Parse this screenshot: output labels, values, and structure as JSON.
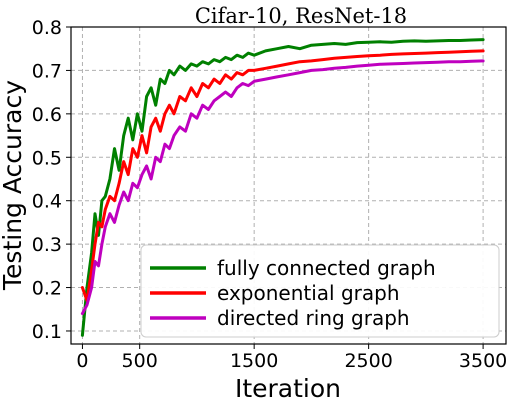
{
  "chart_data": {
    "type": "line",
    "title": "Cifar-10, ResNet-18",
    "xlabel": "Iteration",
    "ylabel": "Testing Accuracy",
    "xlim": [
      -100,
      3700
    ],
    "ylim": [
      0.07,
      0.8
    ],
    "xticks": [
      0,
      500,
      1500,
      2500,
      3500
    ],
    "xtick_labels": [
      "0",
      "500",
      "1500",
      "2500",
      "3500"
    ],
    "yticks": [
      0.1,
      0.2,
      0.3,
      0.4,
      0.5,
      0.6,
      0.7,
      0.8
    ],
    "ytick_labels": [
      "0.1",
      "0.2",
      "0.3",
      "0.4",
      "0.5",
      "0.6",
      "0.7",
      "0.8"
    ],
    "grid": true,
    "legend_position": "lower-right",
    "series": [
      {
        "name": "fully connected graph",
        "color": "#008000",
        "x": [
          0,
          40,
          80,
          110,
          140,
          170,
          200,
          240,
          280,
          320,
          360,
          400,
          440,
          480,
          520,
          560,
          600,
          640,
          680,
          720,
          760,
          800,
          850,
          900,
          950,
          1000,
          1050,
          1100,
          1150,
          1200,
          1250,
          1300,
          1350,
          1400,
          1450,
          1500,
          1600,
          1700,
          1800,
          1900,
          2000,
          2100,
          2200,
          2300,
          2400,
          2500,
          2600,
          2700,
          2800,
          2900,
          3000,
          3100,
          3200,
          3300,
          3400,
          3500
        ],
        "y": [
          0.09,
          0.2,
          0.28,
          0.37,
          0.32,
          0.4,
          0.41,
          0.45,
          0.52,
          0.47,
          0.55,
          0.59,
          0.54,
          0.6,
          0.56,
          0.64,
          0.66,
          0.62,
          0.68,
          0.67,
          0.7,
          0.69,
          0.71,
          0.7,
          0.715,
          0.71,
          0.72,
          0.715,
          0.725,
          0.72,
          0.73,
          0.725,
          0.735,
          0.73,
          0.74,
          0.735,
          0.745,
          0.75,
          0.755,
          0.75,
          0.758,
          0.76,
          0.762,
          0.76,
          0.764,
          0.765,
          0.766,
          0.765,
          0.767,
          0.768,
          0.767,
          0.768,
          0.769,
          0.769,
          0.77,
          0.771
        ]
      },
      {
        "name": "exponential graph",
        "color": "#ff0000",
        "x": [
          0,
          40,
          80,
          110,
          140,
          170,
          200,
          240,
          280,
          320,
          360,
          400,
          440,
          480,
          520,
          560,
          600,
          640,
          680,
          720,
          760,
          800,
          850,
          900,
          950,
          1000,
          1050,
          1100,
          1150,
          1200,
          1250,
          1300,
          1350,
          1400,
          1450,
          1500,
          1600,
          1700,
          1800,
          1900,
          2000,
          2100,
          2200,
          2300,
          2400,
          2500,
          2600,
          2700,
          2800,
          2900,
          3000,
          3100,
          3200,
          3300,
          3400,
          3500
        ],
        "y": [
          0.2,
          0.17,
          0.24,
          0.3,
          0.35,
          0.34,
          0.38,
          0.41,
          0.4,
          0.44,
          0.49,
          0.46,
          0.52,
          0.5,
          0.55,
          0.51,
          0.57,
          0.59,
          0.56,
          0.6,
          0.62,
          0.6,
          0.64,
          0.63,
          0.66,
          0.64,
          0.67,
          0.66,
          0.68,
          0.67,
          0.69,
          0.68,
          0.695,
          0.69,
          0.7,
          0.7,
          0.705,
          0.71,
          0.715,
          0.72,
          0.722,
          0.725,
          0.728,
          0.73,
          0.732,
          0.734,
          0.735,
          0.737,
          0.738,
          0.739,
          0.74,
          0.741,
          0.742,
          0.743,
          0.744,
          0.745
        ]
      },
      {
        "name": "directed ring graph",
        "color": "#bf00bf",
        "x": [
          0,
          40,
          80,
          110,
          140,
          170,
          200,
          240,
          280,
          320,
          360,
          400,
          440,
          480,
          520,
          560,
          600,
          640,
          680,
          720,
          760,
          800,
          850,
          900,
          950,
          1000,
          1050,
          1100,
          1150,
          1200,
          1250,
          1300,
          1350,
          1400,
          1450,
          1500,
          1600,
          1700,
          1800,
          1900,
          2000,
          2100,
          2200,
          2300,
          2400,
          2500,
          2600,
          2700,
          2800,
          2900,
          3000,
          3100,
          3200,
          3300,
          3400,
          3500
        ],
        "y": [
          0.14,
          0.16,
          0.2,
          0.26,
          0.25,
          0.3,
          0.34,
          0.37,
          0.35,
          0.39,
          0.42,
          0.4,
          0.44,
          0.43,
          0.46,
          0.48,
          0.45,
          0.5,
          0.49,
          0.53,
          0.52,
          0.55,
          0.57,
          0.56,
          0.6,
          0.59,
          0.62,
          0.61,
          0.63,
          0.64,
          0.65,
          0.64,
          0.66,
          0.67,
          0.665,
          0.675,
          0.68,
          0.685,
          0.69,
          0.695,
          0.7,
          0.702,
          0.705,
          0.707,
          0.71,
          0.712,
          0.714,
          0.715,
          0.716,
          0.717,
          0.718,
          0.719,
          0.72,
          0.72,
          0.721,
          0.722
        ]
      }
    ]
  }
}
